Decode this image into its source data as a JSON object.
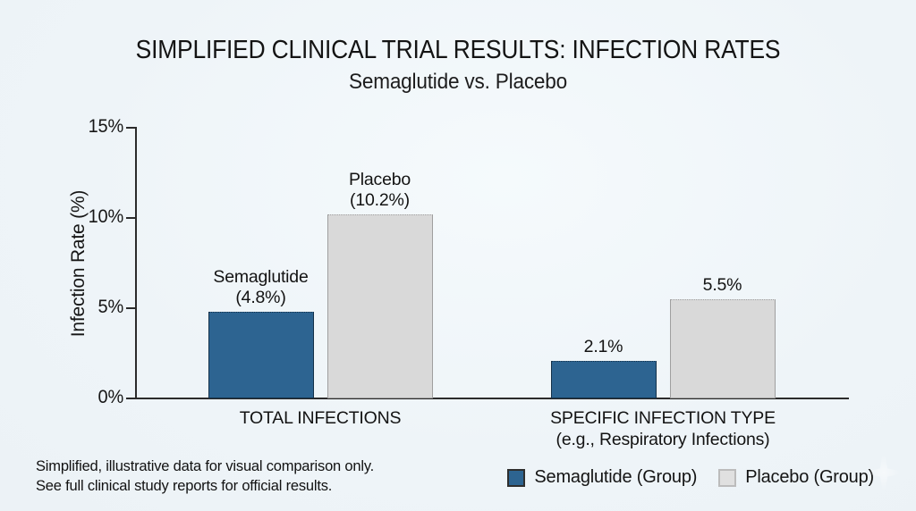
{
  "page": {
    "background": "#eef4f8"
  },
  "header": {
    "title": "SIMPLIFIED CLINICAL TRIAL RESULTS: INFECTION RATES",
    "subtitle": "Semaglutide vs. Placebo"
  },
  "chart_data": {
    "type": "bar",
    "categories": [
      [
        "TOTAL INFECTIONS"
      ],
      [
        "SPECIFIC INFECTION TYPE",
        "(e.g., Respiratory Infections)"
      ]
    ],
    "series": [
      {
        "name": "Semaglutide (Group)",
        "color": "#2d6491",
        "border_color": "#14314a",
        "values": [
          4.8,
          2.1
        ],
        "bar_labels": [
          [
            "Semaglutide",
            "(4.8%)"
          ],
          [
            "2.1%"
          ]
        ]
      },
      {
        "name": "Placebo (Group)",
        "color": "#d9d9d9",
        "border_color": "#9f9f9f",
        "values": [
          10.2,
          5.5
        ],
        "bar_labels": [
          [
            "Placebo",
            "(10.2%)"
          ],
          [
            "5.5%"
          ]
        ]
      }
    ],
    "title": "SIMPLIFIED CLINICAL TRIAL RESULTS: INFECTION RATES",
    "subtitle": "Semaglutide vs. Placebo",
    "xlabel": "",
    "ylabel": "Infection Rate (%)",
    "ylim": [
      0,
      15
    ],
    "yticks": [
      {
        "label": "0%",
        "value": 0
      },
      {
        "label": "5%",
        "value": 5
      },
      {
        "label": "10%",
        "value": 10
      },
      {
        "label": "15%",
        "value": 15
      }
    ],
    "grid": false,
    "legend_position": "bottom-right"
  },
  "footer": {
    "note_lines": [
      "Simplified, illustrative data for visual comparison only.",
      "See full clinical study reports for official results."
    ]
  }
}
